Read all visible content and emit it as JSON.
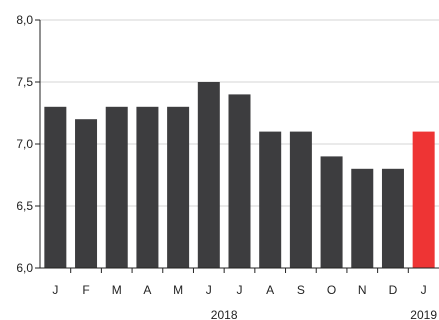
{
  "chart_data": {
    "type": "bar",
    "title": "",
    "xlabel": "",
    "ylabel": "",
    "categories": [
      "J",
      "F",
      "M",
      "A",
      "M",
      "J",
      "J",
      "A",
      "S",
      "O",
      "N",
      "D",
      "J"
    ],
    "values": [
      7.3,
      7.2,
      7.3,
      7.3,
      7.3,
      7.5,
      7.4,
      7.1,
      7.1,
      6.9,
      6.8,
      6.8,
      7.1
    ],
    "highlight_index": 12,
    "year_labels": [
      {
        "label": "2018",
        "category_index": 5.5
      },
      {
        "label": "2019",
        "category_index": 12
      }
    ],
    "ylim": [
      6.0,
      8.0
    ],
    "yticks": [
      6.0,
      6.5,
      7.0,
      7.5,
      8.0
    ],
    "ytick_labels": [
      "6,0",
      "6,5",
      "7,0",
      "7,5",
      "8,0"
    ],
    "grid": true,
    "legend": "none",
    "colors": {
      "bar": "#3d3d3f",
      "highlight": "#ee3434",
      "grid": "#d4d4d4",
      "axis": "#222222"
    }
  }
}
